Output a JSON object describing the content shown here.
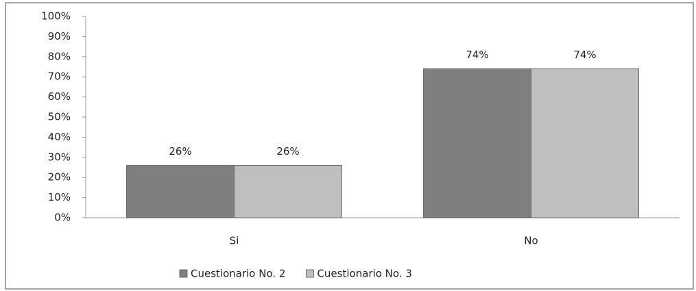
{
  "chart_data": {
    "type": "bar",
    "categories": [
      "Si",
      "No"
    ],
    "series": [
      {
        "name": "Cuestionario No. 2",
        "color": "#7f7f7f",
        "values": [
          26,
          74
        ],
        "value_labels": [
          "26%",
          "74%"
        ]
      },
      {
        "name": "Cuestionario No. 3",
        "color": "#bfbfbf",
        "values": [
          26,
          74
        ],
        "value_labels": [
          "26%",
          "74%"
        ]
      }
    ],
    "ylim": [
      0,
      100
    ],
    "yticks": [
      {
        "value": 0,
        "label": "0%"
      },
      {
        "value": 10,
        "label": "10%"
      },
      {
        "value": 20,
        "label": "20%"
      },
      {
        "value": 30,
        "label": "30%"
      },
      {
        "value": 40,
        "label": "40%"
      },
      {
        "value": 50,
        "label": "50%"
      },
      {
        "value": 60,
        "label": "60%"
      },
      {
        "value": 70,
        "label": "70%"
      },
      {
        "value": 80,
        "label": "80%"
      },
      {
        "value": 90,
        "label": "90%"
      },
      {
        "value": 100,
        "label": "100%"
      }
    ],
    "grid": false,
    "legend": "bottom"
  }
}
